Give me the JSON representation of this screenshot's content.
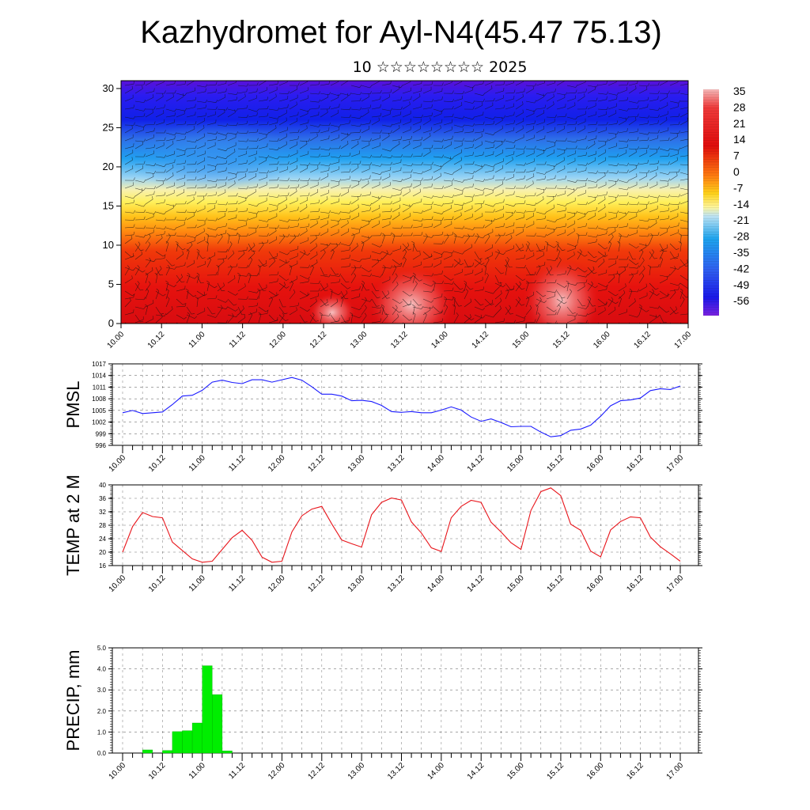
{
  "page": {
    "title": "Kazhydromet for Ayl-N4(45.47 75.13)",
    "subtitle": "10 ☆☆☆☆☆☆☆☆ 2025"
  },
  "time_axis_labels": [
    "10.00",
    "10.12",
    "11.00",
    "11.12",
    "12.00",
    "12.12",
    "13.00",
    "13.12",
    "14.00",
    "14.12",
    "15.00",
    "15.12",
    "16.00",
    "16.12",
    "17.00"
  ],
  "chart_data": [
    {
      "type": "heatmap",
      "description_key": "cross-section",
      "x_labels": [
        "10.00",
        "10.12",
        "11.00",
        "11.12",
        "12.00",
        "12.12",
        "13.00",
        "13.12",
        "14.00",
        "14.12",
        "15.00",
        "15.12",
        "16.00",
        "16.12",
        "17.00"
      ],
      "y_ticks": [
        0,
        5,
        10,
        15,
        20,
        25,
        30
      ],
      "ylim": [
        0,
        31
      ],
      "colorbar_labels": [
        "35",
        "28",
        "21",
        "14",
        "7",
        "0",
        "-7",
        "-14",
        "-21",
        "-28",
        "-35",
        "-42",
        "-49",
        "-56"
      ],
      "colorbar_range": [
        -63,
        42
      ],
      "overlay": "wind barbs"
    },
    {
      "type": "line",
      "ylabel": "PMSL",
      "ylim": [
        996,
        1017
      ],
      "y_ticks": [
        996,
        999,
        1002,
        1005,
        1008,
        1011,
        1014,
        1017
      ],
      "line_color": "#1a1aff",
      "x_hours": [
        0,
        3,
        6,
        9,
        12,
        15,
        18,
        21,
        24,
        27,
        30,
        33,
        36,
        39,
        42,
        45,
        48,
        51,
        54,
        57,
        60,
        63,
        66,
        69,
        72,
        75,
        78,
        81,
        84,
        87,
        90,
        93,
        96,
        99,
        102,
        105,
        108,
        111,
        114,
        117,
        120,
        123,
        126,
        129,
        132,
        135,
        138,
        141,
        144,
        147,
        150,
        153,
        156,
        159,
        162,
        165,
        168
      ],
      "values": [
        1004.4,
        1005.0,
        1004.2,
        1004.4,
        1004.6,
        1006.5,
        1008.7,
        1008.9,
        1010.2,
        1012.3,
        1012.8,
        1012.2,
        1011.9,
        1012.9,
        1012.9,
        1012.3,
        1012.9,
        1013.5,
        1012.8,
        1011.1,
        1009.2,
        1009.2,
        1008.7,
        1007.5,
        1007.6,
        1007.3,
        1006.3,
        1004.7,
        1004.5,
        1004.7,
        1004.4,
        1004.4,
        1005.1,
        1005.9,
        1005.1,
        1003.3,
        1002.2,
        1002.8,
        1001.9,
        1000.8,
        1000.9,
        1000.9,
        999.4,
        998.2,
        998.5,
        999.9,
        1000.2,
        1001.2,
        1003.5,
        1006.2,
        1007.5,
        1007.7,
        1008.2,
        1010.1,
        1010.6,
        1010.4,
        1011.3
      ]
    },
    {
      "type": "line",
      "ylabel": "TEMP at 2 M",
      "ylim": [
        16,
        40
      ],
      "y_ticks": [
        16,
        20,
        24,
        28,
        32,
        36,
        40
      ],
      "line_color": "#e8141a",
      "x_hours": [
        0,
        3,
        6,
        9,
        12,
        15,
        18,
        21,
        24,
        27,
        30,
        33,
        36,
        39,
        42,
        45,
        48,
        51,
        54,
        57,
        60,
        63,
        66,
        69,
        72,
        75,
        78,
        81,
        84,
        87,
        90,
        93,
        96,
        99,
        102,
        105,
        108,
        111,
        114,
        117,
        120,
        123,
        126,
        129,
        132,
        135,
        138,
        141,
        144,
        147,
        150,
        153,
        156,
        159,
        162,
        165,
        168
      ],
      "values": [
        20.0,
        27.6,
        31.8,
        30.6,
        30.2,
        23.0,
        20.5,
        18.0,
        17.0,
        17.3,
        20.8,
        24.3,
        26.5,
        23.5,
        18.5,
        17.0,
        17.3,
        26.0,
        30.8,
        32.8,
        33.6,
        28.4,
        23.6,
        22.5,
        21.5,
        31.1,
        34.8,
        36.1,
        35.5,
        29.0,
        25.7,
        21.3,
        20.2,
        30.2,
        33.6,
        35.4,
        34.8,
        28.9,
        26.0,
        22.8,
        20.8,
        32.4,
        38.0,
        39.1,
        36.8,
        28.3,
        26.5,
        20.3,
        18.6,
        26.6,
        29.1,
        30.5,
        30.2,
        24.5,
        21.6,
        19.5,
        17.3
      ]
    },
    {
      "type": "bar",
      "ylabel": "PRECIP, mm",
      "ylim": [
        0,
        5
      ],
      "y_ticks": [
        0.0,
        1.0,
        2.0,
        3.0,
        4.0,
        5.0
      ],
      "y_tick_labels": [
        "0.0",
        "1.0",
        "2.0",
        "3.0",
        "4.0",
        "5.0"
      ],
      "bar_color": "#00ee00",
      "x_hours": [
        3,
        6,
        9,
        12,
        15,
        18,
        21,
        24,
        27,
        30,
        33,
        36,
        39,
        42,
        45,
        48,
        51,
        54,
        57,
        60,
        63,
        66,
        69,
        72,
        75,
        78,
        81,
        84,
        87,
        90,
        93,
        96,
        99,
        102,
        105,
        108,
        111,
        114,
        117,
        120,
        123,
        126,
        129,
        132,
        135,
        138,
        141,
        144,
        147,
        150,
        153,
        156,
        159,
        162,
        165,
        168
      ],
      "values": [
        0.0,
        0.0,
        0.15,
        0.0,
        0.12,
        1.02,
        1.06,
        1.43,
        4.15,
        2.78,
        0.1,
        0,
        0,
        0,
        0,
        0,
        0,
        0,
        0,
        0,
        0,
        0,
        0,
        0,
        0,
        0,
        0,
        0,
        0,
        0,
        0,
        0,
        0,
        0,
        0,
        0,
        0,
        0,
        0,
        0,
        0,
        0,
        0,
        0,
        0,
        0,
        0,
        0,
        0,
        0,
        0,
        0,
        0,
        0,
        0,
        0
      ]
    }
  ]
}
